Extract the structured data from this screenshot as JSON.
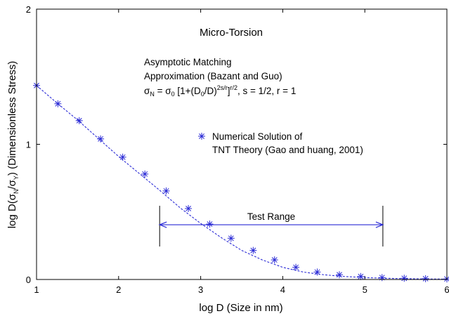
{
  "chart_data": {
    "type": "line",
    "title": "Micro-Torsion",
    "xlabel": "log D (Size in nm)",
    "ylabel": "log D(σN/σY) (Dimensionless Stress)",
    "ylabel_parts": {
      "prefix": "log D(σ",
      "sub1": "N",
      "mid": "/σ",
      "sub2": "Y",
      "suffix": ") (Dimensionless Stress)"
    },
    "xlim": [
      1,
      6
    ],
    "ylim": [
      0,
      2
    ],
    "xticks": [
      1,
      2,
      3,
      4,
      5,
      6
    ],
    "yticks": [
      0,
      1,
      2
    ],
    "grid": false,
    "series": [
      {
        "name": "Asymptotic Matching Approximation (Bazant and Guo)",
        "style": "dashed-line",
        "color": "#2b2bd6",
        "x": [
          1.0,
          1.25,
          1.5,
          1.75,
          2.0,
          2.25,
          2.5,
          2.75,
          3.0,
          3.25,
          3.5,
          3.75,
          4.0,
          4.25,
          4.5,
          4.75,
          5.0,
          5.25,
          5.5,
          5.75,
          6.0
        ],
        "y": [
          1.435,
          1.305,
          1.18,
          1.045,
          0.91,
          0.785,
          0.66,
          0.53,
          0.415,
          0.31,
          0.215,
          0.145,
          0.09,
          0.055,
          0.035,
          0.022,
          0.014,
          0.009,
          0.006,
          0.004,
          0.003
        ]
      },
      {
        "name": "Numerical Solution of TNT Theory (Gao and huang, 2001)",
        "style": "star-markers",
        "color": "#2b2bd6",
        "x": [
          1.0,
          1.26,
          1.52,
          1.78,
          2.05,
          2.32,
          2.58,
          2.85,
          3.11,
          3.37,
          3.64,
          3.9,
          4.16,
          4.42,
          4.69,
          4.95,
          5.21,
          5.48,
          5.74,
          6.0
        ],
        "y": [
          1.435,
          1.3,
          1.175,
          1.04,
          0.905,
          0.78,
          0.655,
          0.525,
          0.41,
          0.305,
          0.215,
          0.145,
          0.09,
          0.055,
          0.035,
          0.022,
          0.014,
          0.009,
          0.006,
          0.004
        ]
      }
    ],
    "annotations": {
      "model_label_line1": "Asymptotic Matching",
      "model_label_line2": "Approximation (Bazant and Guo)",
      "formula": {
        "p1": "σ",
        "p1sub": "N",
        "p2": " = σ",
        "p2sub": "0",
        "p3": " [1+(D",
        "p3sub": "0",
        "p4": "/D)",
        "p4sup": "2s/r",
        "p5": "]",
        "p5sup": "r/2",
        "p6": ", s = 1/2, r = 1"
      },
      "legend_line1": "Numerical Solution of",
      "legend_line2": "TNT Theory (Gao and huang, 2001)",
      "test_range_label": "Test Range",
      "test_range_x": [
        2.5,
        5.22
      ],
      "test_range_y": 0.405
    }
  }
}
